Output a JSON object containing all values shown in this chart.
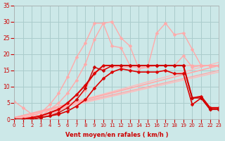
{
  "background_color": "#cce8e8",
  "grid_color": "#aacccc",
  "xlabel": "Vent moyen/en rafales ( km/h )",
  "xlabel_color": "#cc0000",
  "tick_color": "#cc0000",
  "xlim": [
    0,
    23
  ],
  "ylim": [
    0,
    35
  ],
  "yticks": [
    0,
    5,
    10,
    15,
    20,
    25,
    30,
    35
  ],
  "xticks": [
    0,
    1,
    2,
    3,
    4,
    5,
    6,
    7,
    8,
    9,
    10,
    11,
    12,
    13,
    14,
    15,
    16,
    17,
    18,
    19,
    20,
    21,
    22,
    23
  ],
  "series": [
    {
      "x": [
        0,
        23
      ],
      "y": [
        0.2,
        14.5
      ],
      "color": "#ffbbbb",
      "lw": 1.0,
      "marker": null
    },
    {
      "x": [
        0,
        23
      ],
      "y": [
        0.2,
        16.5
      ],
      "color": "#ffbbbb",
      "lw": 1.0,
      "marker": null
    },
    {
      "x": [
        0,
        23
      ],
      "y": [
        0.2,
        17.5
      ],
      "color": "#ffbbbb",
      "lw": 1.0,
      "marker": null
    },
    {
      "x": [
        0,
        23
      ],
      "y": [
        0.5,
        16.5
      ],
      "color": "#ffaaaa",
      "lw": 1.0,
      "marker": null
    },
    {
      "x": [
        0,
        23
      ],
      "y": [
        0.5,
        15.0
      ],
      "color": "#ffaaaa",
      "lw": 1.0,
      "marker": null
    },
    {
      "x": [
        0,
        1,
        2,
        3,
        4,
        5,
        6,
        7,
        8,
        9,
        10,
        11,
        12,
        13,
        14,
        15,
        16,
        17,
        18,
        19,
        20,
        21,
        22,
        23
      ],
      "y": [
        0.5,
        0.5,
        0.5,
        1.0,
        3.0,
        5.0,
        8.0,
        12.0,
        17.0,
        24.5,
        29.5,
        30.0,
        25.0,
        22.5,
        15.5,
        16.0,
        26.5,
        29.5,
        26.0,
        26.5,
        21.5,
        16.5,
        16.5,
        16.5
      ],
      "color": "#ffaaaa",
      "lw": 1.0,
      "marker": "D",
      "markersize": 2.5
    },
    {
      "x": [
        0,
        1,
        2,
        3,
        4,
        5,
        6,
        7,
        8,
        9,
        10,
        11,
        12,
        13,
        14,
        15,
        16,
        17,
        18,
        19,
        20,
        21,
        22,
        23
      ],
      "y": [
        0.5,
        0.5,
        1.0,
        2.0,
        4.5,
        8.0,
        13.0,
        19.0,
        23.5,
        29.5,
        29.5,
        22.5,
        22.0,
        16.5,
        16.5,
        16.5,
        16.5,
        16.5,
        16.5,
        16.5,
        16.5,
        16.5,
        16.5,
        16.5
      ],
      "color": "#ffaaaa",
      "lw": 1.0,
      "marker": "D",
      "markersize": 2.5
    },
    {
      "x": [
        0,
        1,
        2,
        3,
        4,
        5,
        6,
        7,
        8,
        9,
        10,
        11,
        12,
        13,
        14,
        15,
        16,
        17,
        18,
        19,
        20,
        21,
        22,
        23
      ],
      "y": [
        5.5,
        3.5,
        1.5,
        1.0,
        1.5,
        2.5,
        4.0,
        6.0,
        9.0,
        14.5,
        15.5,
        16.0,
        16.0,
        16.0,
        16.0,
        16.0,
        16.5,
        16.5,
        16.5,
        19.5,
        16.0,
        16.5,
        16.5,
        16.5
      ],
      "color": "#ffaaaa",
      "lw": 1.0,
      "marker": "D",
      "markersize": 2.5
    },
    {
      "x": [
        0,
        1,
        2,
        3,
        4,
        5,
        6,
        7,
        8,
        9,
        10,
        11,
        12,
        13,
        14,
        15,
        16,
        17,
        18,
        19,
        20,
        21,
        22,
        23
      ],
      "y": [
        0,
        0,
        0,
        0.5,
        1.0,
        1.5,
        2.5,
        4.0,
        6.0,
        9.5,
        12.5,
        14.5,
        15.5,
        15.0,
        14.5,
        14.5,
        14.5,
        15.0,
        14.0,
        14.0,
        4.5,
        6.5,
        3.0,
        3.0
      ],
      "color": "#dd0000",
      "lw": 1.2,
      "marker": "D",
      "markersize": 2.5
    },
    {
      "x": [
        0,
        1,
        2,
        3,
        4,
        5,
        6,
        7,
        8,
        9,
        10,
        11,
        12,
        13,
        14,
        15,
        16,
        17,
        18,
        19,
        20,
        21,
        22,
        23
      ],
      "y": [
        0,
        0,
        0.5,
        1.0,
        2.0,
        3.0,
        5.0,
        7.5,
        10.5,
        14.0,
        16.5,
        16.5,
        16.5,
        16.5,
        16.5,
        16.5,
        16.5,
        16.5,
        16.5,
        16.5,
        6.5,
        7.0,
        3.5,
        3.5
      ],
      "color": "#dd0000",
      "lw": 1.5,
      "marker": "D",
      "markersize": 2.5
    },
    {
      "x": [
        0,
        1,
        2,
        3,
        4,
        5,
        6,
        7,
        8,
        9,
        10,
        11,
        12,
        13,
        14,
        15,
        16,
        17,
        18,
        19,
        20,
        21,
        22,
        23
      ],
      "y": [
        0,
        0,
        0,
        0.5,
        1.0,
        2.0,
        3.5,
        6.0,
        9.5,
        16.0,
        15.0,
        16.5,
        16.5,
        16.5,
        16.5,
        16.5,
        16.5,
        16.5,
        16.5,
        16.5,
        6.5,
        6.5,
        3.0,
        3.0
      ],
      "color": "#cc0000",
      "lw": 1.0,
      "marker": "D",
      "markersize": 2.5
    }
  ]
}
